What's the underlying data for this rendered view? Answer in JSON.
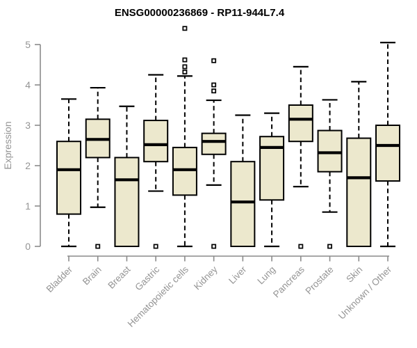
{
  "title": "ENSG00000236869 - RP11-944L7.4",
  "colors": {
    "box_fill": "#ece8cd",
    "box_stroke": "#000000",
    "median": "#000000",
    "whisker": "#000000",
    "outlier_fill": "#ffffff",
    "outlier_stroke": "#000000",
    "axis": "#8a8a8a",
    "tick_label": "#949494",
    "title": "#000000",
    "background": "#ffffff"
  },
  "chart_data": {
    "type": "boxplot",
    "title": "ENSG00000236869 - RP11-944L7.4",
    "xlabel": "",
    "ylabel": "Expression",
    "ylim": [
      0,
      5
    ],
    "yticks": [
      0,
      1,
      2,
      3,
      4,
      5
    ],
    "grid": false,
    "legend": "none",
    "x_label_rotation_deg": 45,
    "categories": [
      "Bladder",
      "Brain",
      "Breast",
      "Gastric",
      "Hematopoietic cells",
      "Kidney",
      "Liver",
      "Lung",
      "Pancreas",
      "Prostate",
      "Skin",
      "Unknown / Other"
    ],
    "series": [
      {
        "name": "Bladder",
        "whisker_low": 0,
        "q1": 0.8,
        "median": 1.9,
        "q3": 2.6,
        "whisker_high": 3.65,
        "outliers": []
      },
      {
        "name": "Brain",
        "whisker_low": 0.97,
        "q1": 2.2,
        "median": 2.65,
        "q3": 3.15,
        "whisker_high": 3.93,
        "outliers": [
          0
        ]
      },
      {
        "name": "Breast",
        "whisker_low": 0,
        "q1": 0,
        "median": 1.65,
        "q3": 2.2,
        "whisker_high": 3.47,
        "outliers": []
      },
      {
        "name": "Gastric",
        "whisker_low": 1.37,
        "q1": 2.1,
        "median": 2.52,
        "q3": 3.12,
        "whisker_high": 4.25,
        "outliers": [
          0
        ]
      },
      {
        "name": "Hematopoietic cells",
        "whisker_low": 0,
        "q1": 1.27,
        "median": 1.9,
        "q3": 2.45,
        "whisker_high": 4.22,
        "outliers": [
          5.4,
          4.62,
          4.45,
          4.32
        ]
      },
      {
        "name": "Kidney",
        "whisker_low": 1.52,
        "q1": 2.28,
        "median": 2.6,
        "q3": 2.8,
        "whisker_high": 3.62,
        "outliers": [
          4.6,
          4.0,
          3.85,
          0
        ]
      },
      {
        "name": "Liver",
        "whisker_low": 0,
        "q1": 0,
        "median": 1.1,
        "q3": 2.1,
        "whisker_high": 3.25,
        "outliers": []
      },
      {
        "name": "Lung",
        "whisker_low": 0,
        "q1": 1.15,
        "median": 2.45,
        "q3": 2.72,
        "whisker_high": 3.3,
        "outliers": []
      },
      {
        "name": "Pancreas",
        "whisker_low": 1.48,
        "q1": 2.6,
        "median": 3.15,
        "q3": 3.5,
        "whisker_high": 4.45,
        "outliers": [
          0
        ]
      },
      {
        "name": "Prostate",
        "whisker_low": 0.85,
        "q1": 1.85,
        "median": 2.32,
        "q3": 2.87,
        "whisker_high": 3.63,
        "outliers": [
          0
        ]
      },
      {
        "name": "Skin",
        "whisker_low": 0,
        "q1": 0,
        "median": 1.7,
        "q3": 2.68,
        "whisker_high": 4.08,
        "outliers": []
      },
      {
        "name": "Unknown / Other",
        "whisker_low": 0,
        "q1": 1.62,
        "median": 2.5,
        "q3": 3.0,
        "whisker_high": 5.05,
        "outliers": []
      }
    ]
  }
}
